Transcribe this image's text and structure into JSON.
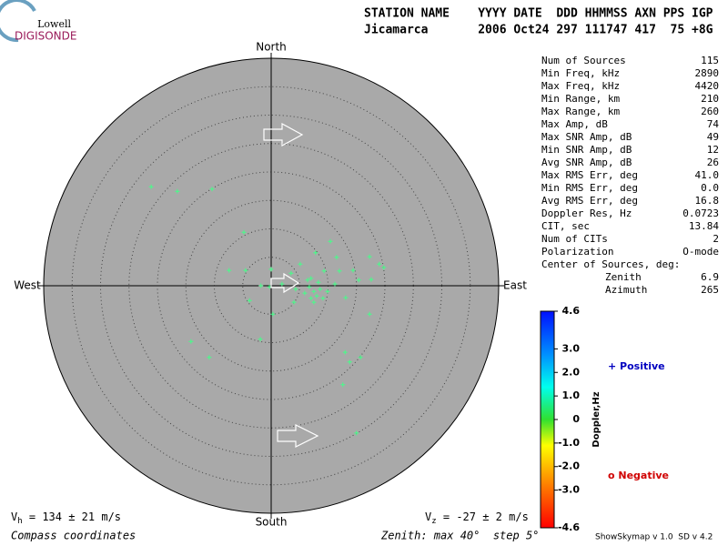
{
  "logo": {
    "line1": "Lowell",
    "line2": "DIGISONDE"
  },
  "header": {
    "labels": "STATION NAME    YYYY DATE  DDD HHMMSS AXN PPS IGP",
    "values": "Jicamarca       2006 Oct24 297 111747 417  75 +8G"
  },
  "chart_data": {
    "type": "polar-scatter",
    "directions": {
      "north": "North",
      "south": "South",
      "west": "West",
      "east": "East"
    },
    "zenith_max": 40,
    "ring_step": 5,
    "color": "#44ff88",
    "points": {
      "x": [
        -21.1,
        -16.5,
        -10.4,
        -4.8,
        -7.4,
        -4.5,
        0,
        5.1,
        7.8,
        10.4,
        11.5,
        12.0,
        14.4,
        17.3,
        19.0,
        19.8,
        17.6,
        15.4,
        -3.8,
        0.3,
        4.0,
        7.5,
        9.9,
        13.1,
        17.3,
        -0.3,
        -1.8,
        1.9,
        4.3,
        5.9,
        6.7,
        7.5,
        8.0,
        8.6,
        9.1,
        6.4,
        7.0,
        8.3,
        11.2,
        -1.9,
        -14.1,
        -10.9,
        13.0,
        15.7,
        13.8,
        12.6,
        15.0,
        3.5,
        9.3,
        7.0
      ],
      "y": [
        17.4,
        16.6,
        17.0,
        9.4,
        2.7,
        2.7,
        2.9,
        3.8,
        5.8,
        7.8,
        5.0,
        2.6,
        2.7,
        5.1,
        3.8,
        3.2,
        1.1,
        1.0,
        -2.6,
        -5.0,
        -2.9,
        -2.9,
        -1.0,
        -2.1,
        -5.0,
        -0.2,
        0,
        0.3,
        -0.6,
        -1.3,
        -0.2,
        -1.0,
        -1.8,
        -0.6,
        -2.2,
        1.0,
        1.3,
        0.6,
        0.3,
        -9.4,
        -9.8,
        -12.6,
        -11.7,
        -12.6,
        -13.4,
        -17.4,
        -25.9,
        2.2,
        2.6,
        -2.2
      ]
    }
  },
  "stats": [
    {
      "label": "Num of Sources",
      "value": "115"
    },
    {
      "label": "Min Freq, kHz",
      "value": "2890"
    },
    {
      "label": "Max Freq, kHz",
      "value": "4420"
    },
    {
      "label": "Min Range, km",
      "value": "210"
    },
    {
      "label": "Max Range, km",
      "value": "260"
    },
    {
      "label": "Max Amp, dB",
      "value": "74"
    },
    {
      "label": "Max SNR Amp, dB",
      "value": "49"
    },
    {
      "label": "Min SNR Amp, dB",
      "value": "12"
    },
    {
      "label": "Avg SNR Amp, dB",
      "value": "26"
    },
    {
      "label": "Max RMS Err, deg",
      "value": "41.0"
    },
    {
      "label": "Min RMS Err, deg",
      "value": "0.0"
    },
    {
      "label": "Avg RMS Err, deg",
      "value": "16.8"
    },
    {
      "label": "Doppler Res, Hz",
      "value": "0.0723"
    },
    {
      "label": "CIT, sec",
      "value": "13.84"
    },
    {
      "label": "Num of CITs",
      "value": "2"
    },
    {
      "label": "Polarization",
      "value": "O-mode"
    }
  ],
  "center": {
    "title": "Center of Sources, deg:",
    "rows": [
      {
        "label": "Zenith",
        "value": "6.9"
      },
      {
        "label": "Azimuth",
        "value": "265"
      }
    ]
  },
  "colorbar": {
    "title": "Doppler,Hz",
    "lim": [
      -4.6,
      4.6
    ],
    "ticks": [
      4.6,
      {
        "value": 3,
        "label": "3.0"
      },
      {
        "value": 2,
        "label": "2.0"
      },
      {
        "value": 1,
        "label": "1.0"
      },
      0,
      {
        "value": -1,
        "label": "-1.0"
      },
      {
        "value": -2,
        "label": "-2.0"
      },
      {
        "value": -3,
        "label": "-3.0"
      },
      -4.6
    ]
  },
  "legend": {
    "positive": "+ Positive",
    "negative": "o Negative"
  },
  "footer": {
    "vh": {
      "symbol": "V",
      "sub": "h",
      "text": " = 134 ± 21 m/s"
    },
    "vz": {
      "symbol": "V",
      "sub": "z",
      "text": " = -27 ± 2 m/s"
    },
    "coords": "Compass coordinates",
    "zenith": "Zenith: max 40°  step 5°",
    "version": "ShowSkymap v 1.0  SD v 4.2"
  }
}
